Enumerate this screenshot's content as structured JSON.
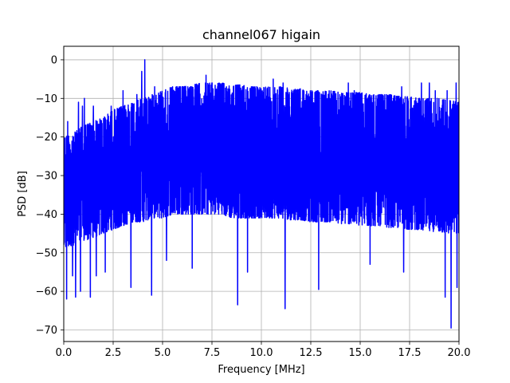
{
  "chart_data": {
    "type": "line",
    "title": "channel067 higain",
    "xlabel": "Frequency [MHz]",
    "ylabel": "PSD [dB]",
    "xlim": [
      0,
      20
    ],
    "ylim": [
      -73,
      3.5
    ],
    "x_ticks": [
      0,
      2.5,
      5,
      7.5,
      10,
      12.5,
      15,
      17.5,
      20
    ],
    "x_tick_labels": [
      "0.0",
      "2.5",
      "5.0",
      "7.5",
      "10.0",
      "12.5",
      "15.0",
      "17.5",
      "20.0"
    ],
    "y_ticks": [
      0,
      -10,
      -20,
      -30,
      -40,
      -50,
      -60,
      -70
    ],
    "y_tick_labels": [
      "0",
      "−10",
      "−20",
      "−30",
      "−40",
      "−50",
      "−60",
      "−70"
    ],
    "grid": true,
    "series": [
      {
        "color": "#0000ff",
        "envelope": {
          "x": [
            0,
            0.5,
            1,
            1.5,
            2,
            2.5,
            3,
            3.5,
            4,
            4.5,
            5,
            5.5,
            6,
            6.5,
            7,
            7.5,
            8,
            8.5,
            9,
            9.5,
            10,
            10.5,
            11,
            11.5,
            12,
            12.5,
            13,
            13.5,
            14,
            14.5,
            15,
            15.5,
            16,
            16.5,
            17,
            17.5,
            18,
            18.5,
            19,
            19.5,
            20
          ],
          "upper": [
            -20,
            -19,
            -17,
            -16,
            -15,
            -13,
            -12,
            -11,
            -10,
            -9,
            -8,
            -7,
            -7,
            -6.5,
            -6,
            -6,
            -6,
            -6.5,
            -6.5,
            -7,
            -7,
            -7,
            -7,
            -7.5,
            -7.5,
            -8,
            -8,
            -8,
            -8.5,
            -8.5,
            -8.5,
            -9,
            -9,
            -9,
            -9.5,
            -9.5,
            -10,
            -10,
            -10,
            -10.5,
            -11
          ],
          "lower": [
            -49,
            -48,
            -47,
            -46,
            -45,
            -44,
            -43,
            -42,
            -42,
            -41,
            -41,
            -40,
            -40,
            -40,
            -40,
            -40,
            -40,
            -41,
            -41,
            -41,
            -41,
            -41,
            -41,
            -41.5,
            -41.5,
            -42,
            -42,
            -42,
            -42.5,
            -42.5,
            -43,
            -43,
            -43,
            -43.5,
            -43.5,
            -44,
            -44,
            -44.5,
            -44.5,
            -45,
            -45
          ]
        },
        "peaks": [
          {
            "x": 0.2,
            "y": -16
          },
          {
            "x": 0.75,
            "y": -11
          },
          {
            "x": 0.95,
            "y": -12
          },
          {
            "x": 1.05,
            "y": -10
          },
          {
            "x": 1.3,
            "y": -17
          },
          {
            "x": 1.5,
            "y": -12
          },
          {
            "x": 2.4,
            "y": -12
          },
          {
            "x": 3.0,
            "y": -8
          },
          {
            "x": 3.7,
            "y": -9
          },
          {
            "x": 3.95,
            "y": -3
          },
          {
            "x": 4.1,
            "y": 0
          },
          {
            "x": 4.6,
            "y": -7
          },
          {
            "x": 5.9,
            "y": -7
          },
          {
            "x": 6.5,
            "y": -4
          },
          {
            "x": 7.2,
            "y": -4
          },
          {
            "x": 10.6,
            "y": -5
          },
          {
            "x": 11.1,
            "y": -6
          },
          {
            "x": 14.4,
            "y": -6
          },
          {
            "x": 14.7,
            "y": -8
          },
          {
            "x": 17.1,
            "y": -7
          },
          {
            "x": 18.1,
            "y": -6
          },
          {
            "x": 18.5,
            "y": -6
          },
          {
            "x": 18.8,
            "y": -8
          },
          {
            "x": 19.4,
            "y": -8
          },
          {
            "x": 19.85,
            "y": -6
          }
        ],
        "dips": [
          {
            "x": 0.15,
            "y": -62
          },
          {
            "x": 0.45,
            "y": -56
          },
          {
            "x": 0.6,
            "y": -61.5
          },
          {
            "x": 0.85,
            "y": -60
          },
          {
            "x": 1.35,
            "y": -61.5
          },
          {
            "x": 1.65,
            "y": -56
          },
          {
            "x": 2.1,
            "y": -55
          },
          {
            "x": 3.4,
            "y": -59
          },
          {
            "x": 4.45,
            "y": -61
          },
          {
            "x": 5.2,
            "y": -52
          },
          {
            "x": 6.5,
            "y": -54
          },
          {
            "x": 8.8,
            "y": -63.5
          },
          {
            "x": 9.3,
            "y": -55
          },
          {
            "x": 11.2,
            "y": -64.5
          },
          {
            "x": 12.9,
            "y": -59.5
          },
          {
            "x": 15.5,
            "y": -53
          },
          {
            "x": 17.2,
            "y": -55
          },
          {
            "x": 19.3,
            "y": -61.5
          },
          {
            "x": 19.6,
            "y": -69.5
          },
          {
            "x": 19.9,
            "y": -59
          }
        ]
      }
    ]
  }
}
